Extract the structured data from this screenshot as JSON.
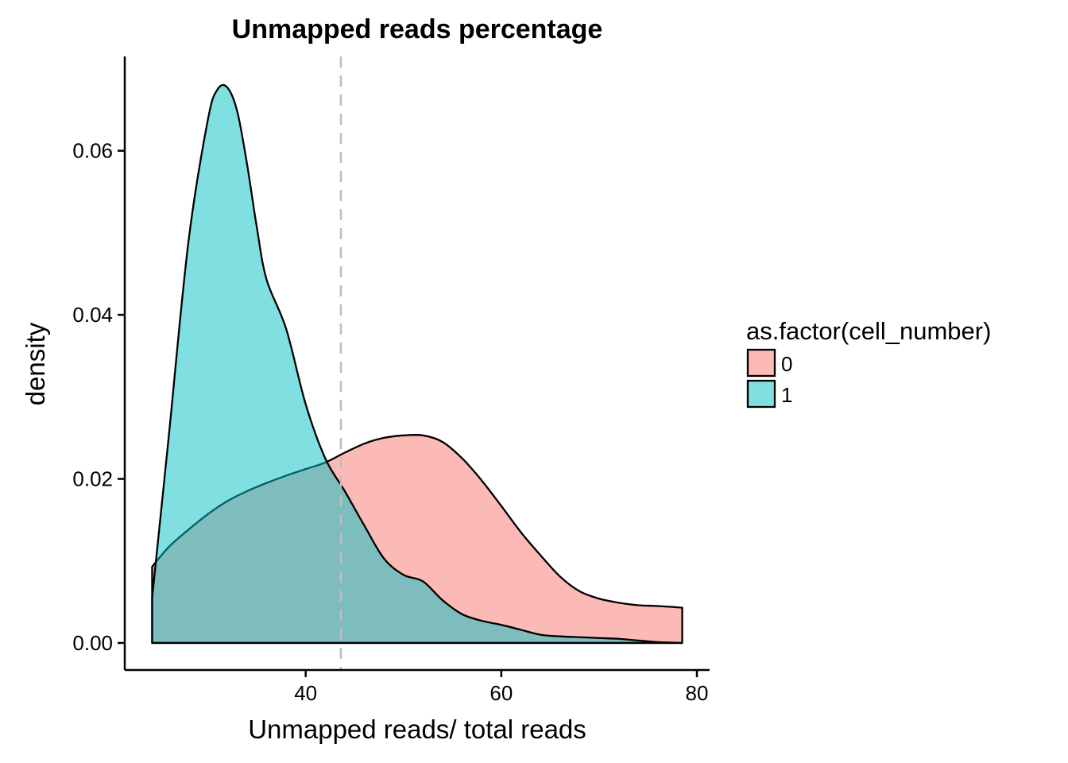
{
  "chart_data": {
    "type": "area",
    "subtype": "density",
    "title": "Unmapped reads percentage",
    "xlabel": "Unmapped reads/ total reads",
    "ylabel": "density",
    "xlim": [
      21.5,
      81.3
    ],
    "ylim": [
      -0.0033,
      0.0715
    ],
    "x_ticks": [
      40,
      60,
      80
    ],
    "x_tick_labels": [
      "40",
      "60",
      "80"
    ],
    "y_ticks": [
      0.0,
      0.02,
      0.04,
      0.06
    ],
    "y_tick_labels": [
      "0.00",
      "0.02",
      "0.04",
      "0.06"
    ],
    "grid": false,
    "legend": {
      "title": "as.factor(cell_number)",
      "position": "right"
    },
    "reference_line": {
      "x": 43.6,
      "style": "dashed",
      "color": "#bebebe"
    },
    "series": [
      {
        "name": "0",
        "color": "#F8766D",
        "fill_opacity": 0.5,
        "x": [
          24.3,
          26.0,
          28.0,
          30.0,
          32.0,
          34.0,
          36.0,
          38.0,
          40.0,
          42.0,
          44.0,
          46.0,
          48.0,
          50.0,
          52.0,
          54.0,
          56.0,
          58.0,
          60.0,
          62.0,
          64.0,
          66.0,
          68.0,
          70.0,
          72.0,
          74.0,
          76.0,
          78.5
        ],
        "values": [
          0.0093,
          0.0117,
          0.0138,
          0.0157,
          0.0173,
          0.0185,
          0.0195,
          0.0204,
          0.0212,
          0.022,
          0.0232,
          0.0243,
          0.025,
          0.0253,
          0.0253,
          0.0245,
          0.0225,
          0.0198,
          0.0167,
          0.0135,
          0.0107,
          0.0081,
          0.0063,
          0.0054,
          0.0049,
          0.0046,
          0.0045,
          0.0043
        ]
      },
      {
        "name": "1",
        "color": "#00BFC4",
        "fill_opacity": 0.5,
        "x": [
          24.3,
          26.0,
          28.0,
          30.0,
          31.0,
          32.0,
          33.0,
          34.0,
          35.0,
          36.0,
          38.0,
          40.0,
          42.0,
          44.0,
          46.0,
          48.0,
          50.0,
          52.0,
          54.0,
          56.0,
          58.0,
          60.0,
          62.0,
          64.0,
          66.0,
          68.0,
          70.0,
          72.0,
          74.0,
          76.0,
          78.5
        ],
        "values": [
          0.0055,
          0.0252,
          0.0488,
          0.0638,
          0.0675,
          0.0677,
          0.0648,
          0.0584,
          0.0507,
          0.0443,
          0.0383,
          0.0291,
          0.0225,
          0.0185,
          0.0143,
          0.0103,
          0.0083,
          0.0075,
          0.0052,
          0.0035,
          0.0027,
          0.0022,
          0.0016,
          0.001,
          0.0008,
          0.0007,
          0.0006,
          0.0005,
          0.0003,
          0.0001,
          0.0
        ]
      }
    ]
  }
}
